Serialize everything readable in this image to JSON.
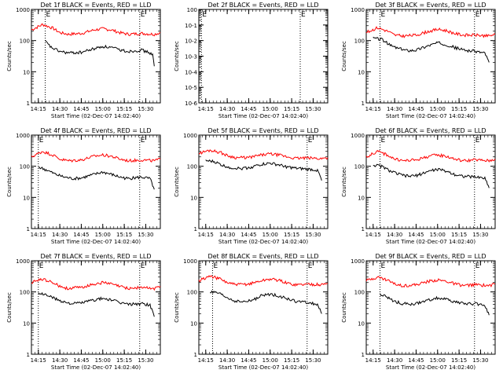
{
  "chart_data": [
    {
      "type": "line",
      "title": "Det 1f BLACK = Events, RED = LLD",
      "xlabel": "Start Time (02-Dec-07 14:02:40)",
      "ylabel": "Counts/sec",
      "yscale": "log",
      "ylim": [
        1,
        1000
      ],
      "yticks": [
        "1",
        "10",
        "100",
        "1000"
      ],
      "xlim": [
        14.17,
        15.67
      ],
      "xticks": [
        "14:15",
        "14:30",
        "14:45",
        "15:00",
        "15:15",
        "15:30"
      ],
      "xtick_values": [
        14.25,
        14.5,
        14.75,
        15.0,
        15.25,
        15.5
      ],
      "markers": [
        14.33,
        15.43
      ],
      "marker_labels": [
        "E",
        "E"
      ],
      "series": [
        {
          "color": "#ff0000",
          "x": [
            14.17,
            14.3,
            14.42,
            14.5,
            14.6,
            14.75,
            14.9,
            15.0,
            15.1,
            15.2,
            15.3,
            15.45,
            15.6,
            15.67
          ],
          "y": [
            220,
            330,
            250,
            180,
            160,
            170,
            220,
            240,
            220,
            180,
            160,
            170,
            160,
            180
          ]
        },
        {
          "color": "#000000",
          "x": [
            14.33,
            14.4,
            14.5,
            14.6,
            14.75,
            14.9,
            15.0,
            15.1,
            15.2,
            15.3,
            15.45,
            15.55,
            15.58,
            15.6
          ],
          "y": [
            95,
            60,
            45,
            40,
            42,
            55,
            65,
            60,
            50,
            45,
            50,
            40,
            35,
            15
          ]
        }
      ]
    },
    {
      "type": "line",
      "title": "Det 2f BLACK = Events, RED = LLD",
      "xlabel": "Start Time (02-Dec-07 14:02:40)",
      "ylabel": "Counts/sec",
      "yscale": "log",
      "ylim": [
        1e-06,
        1
      ],
      "yticks": [
        "10-6",
        "10-5",
        "10-4",
        "10-3",
        "10-2",
        "10-1",
        "100"
      ],
      "xlim": [
        14.17,
        15.67
      ],
      "xticks": [
        "14:15",
        "14:30",
        "14:45",
        "15:00",
        "15:15",
        "15:30"
      ],
      "xtick_values": [
        14.25,
        14.5,
        14.75,
        15.0,
        15.25,
        15.5
      ],
      "markers": [
        14.2,
        15.35
      ],
      "marker_labels": [
        "E",
        "E"
      ],
      "series": []
    },
    {
      "type": "line",
      "title": "Det 3f BLACK = Events, RED = LLD",
      "xlabel": "Start Time (02-Dec-07 14:02:40)",
      "ylabel": "Counts/sec",
      "yscale": "log",
      "ylim": [
        1,
        1000
      ],
      "yticks": [
        "1",
        "10",
        "100",
        "1000"
      ],
      "xlim": [
        14.17,
        15.67
      ],
      "xticks": [
        "14:15",
        "14:30",
        "14:45",
        "15:00",
        "15:15",
        "15:30"
      ],
      "xtick_values": [
        14.25,
        14.5,
        14.75,
        15.0,
        15.25,
        15.5
      ],
      "markers": [
        14.33,
        15.43
      ],
      "marker_labels": [
        "E",
        "E"
      ],
      "series": [
        {
          "color": "#ff0000",
          "x": [
            14.17,
            14.3,
            14.42,
            14.5,
            14.6,
            14.75,
            14.9,
            15.0,
            15.1,
            15.2,
            15.3,
            15.45,
            15.6,
            15.67
          ],
          "y": [
            180,
            260,
            200,
            150,
            140,
            150,
            200,
            230,
            210,
            170,
            150,
            150,
            140,
            160
          ]
        },
        {
          "color": "#000000",
          "x": [
            14.25,
            14.35,
            14.45,
            14.55,
            14.65,
            14.75,
            14.9,
            15.0,
            15.1,
            15.2,
            15.3,
            15.45,
            15.55,
            15.6
          ],
          "y": [
            120,
            110,
            70,
            55,
            48,
            50,
            70,
            85,
            75,
            60,
            50,
            45,
            40,
            20
          ]
        }
      ]
    },
    {
      "type": "line",
      "title": "Det 4f BLACK = Events, RED = LLD",
      "xlabel": "Start Time (02-Dec-07 14:02:40)",
      "ylabel": "Counts/sec",
      "yscale": "log",
      "ylim": [
        1,
        1000
      ],
      "yticks": [
        "1",
        "10",
        "100",
        "1000"
      ],
      "xlim": [
        14.17,
        15.67
      ],
      "xticks": [
        "14:15",
        "14:30",
        "14:45",
        "15:00",
        "15:15",
        "15:30"
      ],
      "xtick_values": [
        14.25,
        14.5,
        14.75,
        15.0,
        15.25,
        15.5
      ],
      "markers": [
        14.25,
        15.43
      ],
      "marker_labels": [
        "E",
        "E"
      ],
      "series": [
        {
          "color": "#ff0000",
          "x": [
            14.17,
            14.3,
            14.42,
            14.5,
            14.6,
            14.75,
            14.9,
            15.0,
            15.1,
            15.2,
            15.3,
            15.45,
            15.6,
            15.67
          ],
          "y": [
            200,
            300,
            230,
            170,
            150,
            160,
            210,
            230,
            210,
            170,
            150,
            160,
            150,
            170
          ]
        },
        {
          "color": "#000000",
          "x": [
            14.25,
            14.35,
            14.45,
            14.55,
            14.65,
            14.75,
            14.9,
            15.0,
            15.1,
            15.2,
            15.3,
            15.45,
            15.55,
            15.6
          ],
          "y": [
            95,
            75,
            55,
            45,
            40,
            42,
            55,
            65,
            55,
            45,
            40,
            45,
            40,
            18
          ]
        }
      ]
    },
    {
      "type": "line",
      "title": "Det 5f BLACK = Events, RED = LLD",
      "xlabel": "Start Time (02-Dec-07 14:02:40)",
      "ylabel": "Counts/sec",
      "yscale": "log",
      "ylim": [
        1,
        1000
      ],
      "yticks": [
        "1",
        "10",
        "100",
        "1000"
      ],
      "xlim": [
        14.17,
        15.67
      ],
      "xticks": [
        "14:15",
        "14:30",
        "14:45",
        "15:00",
        "15:15",
        "15:30"
      ],
      "xtick_values": [
        14.25,
        14.5,
        14.75,
        15.0,
        15.25,
        15.5
      ],
      "markers": [
        15.43
      ],
      "marker_labels": [
        "E"
      ],
      "series": [
        {
          "color": "#ff0000",
          "x": [
            14.17,
            14.3,
            14.42,
            14.5,
            14.6,
            14.75,
            14.9,
            15.0,
            15.1,
            15.2,
            15.3,
            15.45,
            15.6,
            15.67
          ],
          "y": [
            260,
            330,
            280,
            220,
            190,
            190,
            230,
            250,
            230,
            200,
            180,
            185,
            175,
            190
          ]
        },
        {
          "color": "#000000",
          "x": [
            14.25,
            14.35,
            14.45,
            14.55,
            14.65,
            14.75,
            14.9,
            15.0,
            15.1,
            15.2,
            15.3,
            15.45,
            15.55,
            15.6
          ],
          "y": [
            150,
            140,
            105,
            90,
            85,
            90,
            115,
            125,
            110,
            95,
            85,
            80,
            75,
            35
          ]
        }
      ]
    },
    {
      "type": "line",
      "title": "Det 6f BLACK = Events, RED = LLD",
      "xlabel": "Start Time (02-Dec-07 14:02:40)",
      "ylabel": "Counts/sec",
      "yscale": "log",
      "ylim": [
        1,
        1000
      ],
      "yticks": [
        "1",
        "10",
        "100",
        "1000"
      ],
      "xlim": [
        14.17,
        15.67
      ],
      "xticks": [
        "14:15",
        "14:30",
        "14:45",
        "15:00",
        "15:15",
        "15:30"
      ],
      "xtick_values": [
        14.25,
        14.5,
        14.75,
        15.0,
        15.25,
        15.5
      ],
      "markers": [
        14.33,
        15.43
      ],
      "marker_labels": [
        "E",
        "E"
      ],
      "series": [
        {
          "color": "#ff0000",
          "x": [
            14.17,
            14.3,
            14.42,
            14.5,
            14.6,
            14.75,
            14.9,
            15.0,
            15.1,
            15.2,
            15.3,
            15.45,
            15.6,
            15.67
          ],
          "y": [
            200,
            300,
            230,
            170,
            150,
            160,
            210,
            230,
            210,
            170,
            150,
            160,
            150,
            170
          ]
        },
        {
          "color": "#000000",
          "x": [
            14.25,
            14.35,
            14.45,
            14.55,
            14.65,
            14.75,
            14.9,
            15.0,
            15.1,
            15.2,
            15.3,
            15.45,
            15.55,
            15.6
          ],
          "y": [
            110,
            100,
            70,
            55,
            48,
            50,
            70,
            80,
            70,
            55,
            48,
            45,
            42,
            20
          ]
        }
      ]
    },
    {
      "type": "line",
      "title": "Det 7f BLACK = Events, RED = LLD",
      "xlabel": "Start Time (02-Dec-07 14:02:40)",
      "ylabel": "Counts/sec",
      "yscale": "log",
      "ylim": [
        1,
        1000
      ],
      "yticks": [
        "1",
        "10",
        "100",
        "1000"
      ],
      "xlim": [
        14.17,
        15.67
      ],
      "xticks": [
        "14:15",
        "14:30",
        "14:45",
        "15:00",
        "15:15",
        "15:30"
      ],
      "xtick_values": [
        14.25,
        14.5,
        14.75,
        15.0,
        15.25,
        15.5
      ],
      "markers": [
        14.25,
        15.43
      ],
      "marker_labels": [
        "E",
        "E"
      ],
      "series": [
        {
          "color": "#ff0000",
          "x": [
            14.17,
            14.3,
            14.42,
            14.5,
            14.6,
            14.75,
            14.9,
            15.0,
            15.1,
            15.2,
            15.3,
            15.45,
            15.6,
            15.67
          ],
          "y": [
            200,
            260,
            200,
            150,
            130,
            140,
            180,
            200,
            180,
            150,
            130,
            140,
            130,
            150
          ]
        },
        {
          "color": "#000000",
          "x": [
            14.25,
            14.35,
            14.45,
            14.55,
            14.65,
            14.75,
            14.9,
            15.0,
            15.1,
            15.2,
            15.3,
            15.45,
            15.55,
            15.6
          ],
          "y": [
            90,
            80,
            60,
            48,
            42,
            45,
            55,
            62,
            55,
            45,
            40,
            42,
            38,
            16
          ]
        }
      ]
    },
    {
      "type": "line",
      "title": "Det 8f BLACK = Events, RED = LLD",
      "xlabel": "Start Time (02-Dec-07 14:02:40)",
      "ylabel": "Counts/sec",
      "yscale": "log",
      "ylim": [
        1,
        1000
      ],
      "yticks": [
        "1",
        "10",
        "100",
        "1000"
      ],
      "xlim": [
        14.17,
        15.67
      ],
      "xticks": [
        "14:15",
        "14:30",
        "14:45",
        "15:00",
        "15:15",
        "15:30"
      ],
      "xtick_values": [
        14.25,
        14.5,
        14.75,
        15.0,
        15.25,
        15.5
      ],
      "markers": [
        14.33,
        15.43
      ],
      "marker_labels": [
        "E",
        "E"
      ],
      "series": [
        {
          "color": "#ff0000",
          "x": [
            14.17,
            14.3,
            14.42,
            14.5,
            14.6,
            14.75,
            14.9,
            15.0,
            15.1,
            15.2,
            15.3,
            15.45,
            15.6,
            15.67
          ],
          "y": [
            230,
            320,
            260,
            200,
            170,
            180,
            230,
            260,
            240,
            190,
            170,
            180,
            170,
            190
          ]
        },
        {
          "color": "#000000",
          "x": [
            14.3,
            14.4,
            14.5,
            14.6,
            14.7,
            14.8,
            14.9,
            15.0,
            15.1,
            15.2,
            15.3,
            15.45,
            15.55,
            15.6
          ],
          "y": [
            100,
            90,
            65,
            50,
            48,
            55,
            75,
            85,
            75,
            60,
            50,
            45,
            40,
            20
          ]
        }
      ]
    },
    {
      "type": "line",
      "title": "Det 9f BLACK = Events, RED = LLD",
      "xlabel": "Start Time (02-Dec-07 14:02:40)",
      "ylabel": "Counts/sec",
      "yscale": "log",
      "ylim": [
        1,
        1000
      ],
      "yticks": [
        "1",
        "10",
        "100",
        "1000"
      ],
      "xlim": [
        14.17,
        15.67
      ],
      "xticks": [
        "14:15",
        "14:30",
        "14:45",
        "15:00",
        "15:15",
        "15:30"
      ],
      "xtick_values": [
        14.25,
        14.5,
        14.75,
        15.0,
        15.25,
        15.5
      ],
      "markers": [
        14.33,
        15.43
      ],
      "marker_labels": [
        "E",
        "E"
      ],
      "series": [
        {
          "color": "#ff0000",
          "x": [
            14.17,
            14.3,
            14.42,
            14.5,
            14.6,
            14.75,
            14.9,
            15.0,
            15.1,
            15.2,
            15.3,
            15.45,
            15.6,
            15.67
          ],
          "y": [
            230,
            300,
            240,
            180,
            160,
            170,
            220,
            240,
            220,
            180,
            160,
            170,
            160,
            180
          ]
        },
        {
          "color": "#000000",
          "x": [
            14.33,
            14.4,
            14.5,
            14.6,
            14.7,
            14.8,
            14.9,
            15.0,
            15.1,
            15.2,
            15.3,
            15.45,
            15.55,
            15.6
          ],
          "y": [
            85,
            70,
            50,
            42,
            40,
            45,
            55,
            65,
            58,
            48,
            42,
            42,
            38,
            18
          ]
        }
      ]
    }
  ]
}
